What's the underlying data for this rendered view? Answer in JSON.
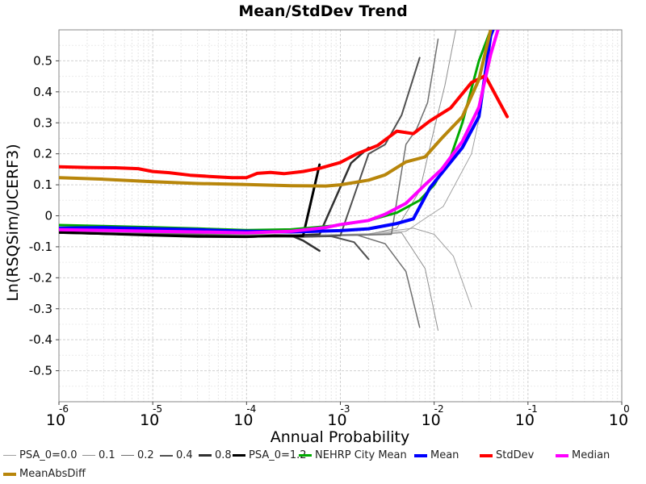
{
  "chart_data": {
    "type": "line",
    "title": "Mean/StdDev Trend",
    "xlabel": "Annual Probability",
    "ylabel": "Ln(RSQSim/UCERF3)",
    "xscale": "log",
    "xlim": [
      1e-06,
      1
    ],
    "ylim": [
      -0.6,
      0.6
    ],
    "x_ticks": [
      {
        "base": "10",
        "exp": "-6",
        "value": 1e-06
      },
      {
        "base": "10",
        "exp": "-5",
        "value": 1e-05
      },
      {
        "base": "10",
        "exp": "-4",
        "value": 0.0001
      },
      {
        "base": "10",
        "exp": "-3",
        "value": 0.001
      },
      {
        "base": "10",
        "exp": "-2",
        "value": 0.01
      },
      {
        "base": "10",
        "exp": "-1",
        "value": 0.1
      },
      {
        "base": "10",
        "exp": "0",
        "value": 1
      }
    ],
    "y_ticks": [
      "-0.5",
      "-0.4",
      "-0.3",
      "-0.2",
      "-0.1",
      "0",
      "0.1",
      "0.2",
      "0.3",
      "0.4",
      "0.5"
    ],
    "grid": true,
    "legend_position": "bottom",
    "series": [
      {
        "name": "PSA_0=0.0",
        "color": "#a0a0a0",
        "width": 1,
        "points": [
          [
            1e-06,
            -0.05
          ],
          [
            3e-05,
            -0.056
          ],
          [
            0.0001,
            -0.06
          ],
          [
            0.0006,
            -0.062
          ],
          [
            0.002,
            -0.06
          ],
          [
            0.005,
            -0.05
          ],
          [
            0.0125,
            0.03
          ],
          [
            0.025,
            0.2
          ],
          [
            0.032,
            0.35
          ],
          [
            0.04,
            0.58
          ]
        ]
      },
      {
        "name": "PSA_0=0.0",
        "color": "#a0a0a0",
        "width": 1,
        "points": [
          [
            1e-06,
            -0.05
          ],
          [
            3e-05,
            -0.056
          ],
          [
            0.0001,
            -0.06
          ],
          [
            0.0006,
            -0.062
          ],
          [
            0.002,
            -0.058
          ],
          [
            0.006,
            -0.04
          ],
          [
            0.01,
            -0.06
          ],
          [
            0.016,
            -0.13
          ],
          [
            0.025,
            -0.295
          ]
        ]
      },
      {
        "name": "0.1",
        "color": "#909090",
        "width": 1,
        "points": [
          [
            1e-06,
            -0.05
          ],
          [
            3e-05,
            -0.057
          ],
          [
            0.0001,
            -0.062
          ],
          [
            0.0005,
            -0.066
          ],
          [
            0.002,
            -0.06
          ],
          [
            0.004,
            -0.04
          ],
          [
            0.007,
            0.08
          ],
          [
            0.01,
            0.28
          ],
          [
            0.013,
            0.42
          ],
          [
            0.017,
            0.6
          ]
        ]
      },
      {
        "name": "0.1",
        "color": "#909090",
        "width": 1,
        "points": [
          [
            1e-06,
            -0.05
          ],
          [
            3e-05,
            -0.057
          ],
          [
            0.0001,
            -0.062
          ],
          [
            0.0005,
            -0.066
          ],
          [
            0.002,
            -0.062
          ],
          [
            0.0045,
            -0.055
          ],
          [
            0.008,
            -0.17
          ],
          [
            0.011,
            -0.37
          ]
        ]
      },
      {
        "name": "0.2",
        "color": "#707070",
        "width": 1.5,
        "points": [
          [
            1e-06,
            -0.052
          ],
          [
            3e-05,
            -0.06
          ],
          [
            0.0001,
            -0.064
          ],
          [
            0.0004,
            -0.066
          ],
          [
            0.002,
            -0.062
          ],
          [
            0.0035,
            -0.06
          ],
          [
            0.005,
            0.23
          ],
          [
            0.0065,
            0.28
          ],
          [
            0.0085,
            0.365
          ],
          [
            0.011,
            0.57
          ]
        ]
      },
      {
        "name": "0.2",
        "color": "#707070",
        "width": 1.5,
        "points": [
          [
            1e-06,
            -0.052
          ],
          [
            3e-05,
            -0.06
          ],
          [
            0.0001,
            -0.064
          ],
          [
            0.0004,
            -0.066
          ],
          [
            0.0015,
            -0.062
          ],
          [
            0.003,
            -0.09
          ],
          [
            0.005,
            -0.18
          ],
          [
            0.007,
            -0.36
          ]
        ]
      },
      {
        "name": "0.4",
        "color": "#505050",
        "width": 2,
        "points": [
          [
            1e-06,
            -0.055
          ],
          [
            3e-05,
            -0.063
          ],
          [
            0.0001,
            -0.067
          ],
          [
            0.0004,
            -0.068
          ],
          [
            0.001,
            -0.064
          ],
          [
            0.002,
            0.2
          ],
          [
            0.003,
            0.23
          ],
          [
            0.0045,
            0.325
          ],
          [
            0.007,
            0.51
          ]
        ]
      },
      {
        "name": "0.4",
        "color": "#505050",
        "width": 2,
        "points": [
          [
            1e-06,
            -0.055
          ],
          [
            3e-05,
            -0.063
          ],
          [
            0.0001,
            -0.067
          ],
          [
            0.0004,
            -0.068
          ],
          [
            0.0008,
            -0.066
          ],
          [
            0.0014,
            -0.085
          ],
          [
            0.002,
            -0.14
          ]
        ]
      },
      {
        "name": "0.8",
        "color": "#303030",
        "width": 2.5,
        "points": [
          [
            1e-06,
            -0.055
          ],
          [
            3e-05,
            -0.065
          ],
          [
            0.0001,
            -0.068
          ],
          [
            0.0003,
            -0.064
          ],
          [
            0.0006,
            -0.06
          ],
          [
            0.0013,
            0.17
          ],
          [
            0.002,
            0.22
          ]
        ]
      },
      {
        "name": "0.8",
        "color": "#303030",
        "width": 2.5,
        "points": [
          [
            1e-06,
            -0.055
          ],
          [
            3e-05,
            -0.065
          ],
          [
            0.0001,
            -0.068
          ],
          [
            0.0003,
            -0.064
          ],
          [
            0.0004,
            -0.08
          ],
          [
            0.0006,
            -0.113
          ]
        ]
      },
      {
        "name": "PSA_0=1.2",
        "color": "#000000",
        "width": 3,
        "points": [
          [
            1e-06,
            -0.053
          ],
          [
            3e-06,
            -0.058
          ],
          [
            1e-05,
            -0.063
          ],
          [
            3e-05,
            -0.067
          ],
          [
            0.0001,
            -0.068
          ],
          [
            0.0002,
            -0.064
          ],
          [
            0.0004,
            -0.065
          ],
          [
            0.0006,
            0.165
          ]
        ]
      },
      {
        "name": "NEHRP City Mean",
        "color": "#00aa00",
        "width": 3,
        "points": [
          [
            1e-06,
            -0.03
          ],
          [
            3e-06,
            -0.033
          ],
          [
            1e-05,
            -0.037
          ],
          [
            3e-05,
            -0.041
          ],
          [
            0.0001,
            -0.046
          ],
          [
            0.0003,
            -0.044
          ],
          [
            0.001,
            -0.03
          ],
          [
            0.002,
            -0.015
          ],
          [
            0.004,
            0.01
          ],
          [
            0.007,
            0.05
          ],
          [
            0.01,
            0.1
          ],
          [
            0.015,
            0.19
          ],
          [
            0.02,
            0.3
          ],
          [
            0.03,
            0.5
          ],
          [
            0.04,
            0.6
          ]
        ]
      },
      {
        "name": "Mean",
        "color": "#0000ff",
        "width": 4,
        "points": [
          [
            1e-06,
            -0.04
          ],
          [
            3e-06,
            -0.038
          ],
          [
            1e-05,
            -0.042
          ],
          [
            3e-05,
            -0.045
          ],
          [
            0.0001,
            -0.05
          ],
          [
            0.0003,
            -0.052
          ],
          [
            0.001,
            -0.048
          ],
          [
            0.002,
            -0.042
          ],
          [
            0.004,
            -0.025
          ],
          [
            0.006,
            -0.01
          ],
          [
            0.009,
            0.09
          ],
          [
            0.013,
            0.15
          ],
          [
            0.02,
            0.22
          ],
          [
            0.03,
            0.32
          ],
          [
            0.04,
            0.58
          ],
          [
            0.045,
            0.62
          ]
        ]
      },
      {
        "name": "StdDev",
        "color": "#ff0000",
        "width": 4,
        "points": [
          [
            1e-06,
            0.158
          ],
          [
            2e-06,
            0.156
          ],
          [
            4e-06,
            0.155
          ],
          [
            7e-06,
            0.152
          ],
          [
            1e-05,
            0.143
          ],
          [
            1.5e-05,
            0.139
          ],
          [
            2.5e-05,
            0.131
          ],
          [
            4e-05,
            0.127
          ],
          [
            7e-05,
            0.123
          ],
          [
            0.0001,
            0.123
          ],
          [
            0.00013,
            0.137
          ],
          [
            0.00018,
            0.14
          ],
          [
            0.00025,
            0.136
          ],
          [
            0.0004,
            0.143
          ],
          [
            0.0006,
            0.153
          ],
          [
            0.001,
            0.172
          ],
          [
            0.0015,
            0.2
          ],
          [
            0.0025,
            0.227
          ],
          [
            0.004,
            0.273
          ],
          [
            0.006,
            0.265
          ],
          [
            0.009,
            0.306
          ],
          [
            0.015,
            0.348
          ],
          [
            0.025,
            0.43
          ],
          [
            0.035,
            0.452
          ],
          [
            0.06,
            0.32
          ]
        ]
      },
      {
        "name": "Median",
        "color": "#ff00ff",
        "width": 4,
        "points": [
          [
            1e-06,
            -0.045
          ],
          [
            3e-06,
            -0.047
          ],
          [
            1e-05,
            -0.05
          ],
          [
            3e-05,
            -0.052
          ],
          [
            0.0001,
            -0.055
          ],
          [
            0.0003,
            -0.05
          ],
          [
            0.0007,
            -0.038
          ],
          [
            0.001,
            -0.028
          ],
          [
            0.002,
            -0.015
          ],
          [
            0.003,
            0.005
          ],
          [
            0.005,
            0.04
          ],
          [
            0.008,
            0.1
          ],
          [
            0.012,
            0.15
          ],
          [
            0.02,
            0.24
          ],
          [
            0.03,
            0.35
          ],
          [
            0.04,
            0.52
          ],
          [
            0.05,
            0.62
          ]
        ]
      },
      {
        "name": "MeanAbsDiff",
        "color": "#b8860b",
        "width": 4,
        "points": [
          [
            1e-06,
            0.123
          ],
          [
            3e-06,
            0.118
          ],
          [
            1e-05,
            0.11
          ],
          [
            3e-05,
            0.104
          ],
          [
            0.0001,
            0.101
          ],
          [
            0.0003,
            0.097
          ],
          [
            0.0007,
            0.096
          ],
          [
            0.001,
            0.1
          ],
          [
            0.002,
            0.115
          ],
          [
            0.003,
            0.132
          ],
          [
            0.005,
            0.174
          ],
          [
            0.008,
            0.19
          ],
          [
            0.012,
            0.25
          ],
          [
            0.02,
            0.32
          ],
          [
            0.03,
            0.44
          ],
          [
            0.04,
            0.6
          ]
        ]
      }
    ]
  },
  "legend": [
    {
      "label": "PSA_0=0.0",
      "color": "#a0a0a0",
      "width": 1
    },
    {
      "label": "0.1",
      "color": "#909090",
      "width": 1
    },
    {
      "label": "0.2",
      "color": "#707070",
      "width": 1.5
    },
    {
      "label": "0.4",
      "color": "#505050",
      "width": 2
    },
    {
      "label": "0.8",
      "color": "#303030",
      "width": 2.5
    },
    {
      "label": "PSA_0=1.2",
      "color": "#000000",
      "width": 3
    },
    {
      "label": "NEHRP City Mean",
      "color": "#00aa00",
      "width": 3
    },
    {
      "label": "Mean",
      "color": "#0000ff",
      "width": 4
    },
    {
      "label": "StdDev",
      "color": "#ff0000",
      "width": 4
    },
    {
      "label": "Median",
      "color": "#ff00ff",
      "width": 4
    },
    {
      "label": "MeanAbsDiff",
      "color": "#b8860b",
      "width": 4
    }
  ]
}
